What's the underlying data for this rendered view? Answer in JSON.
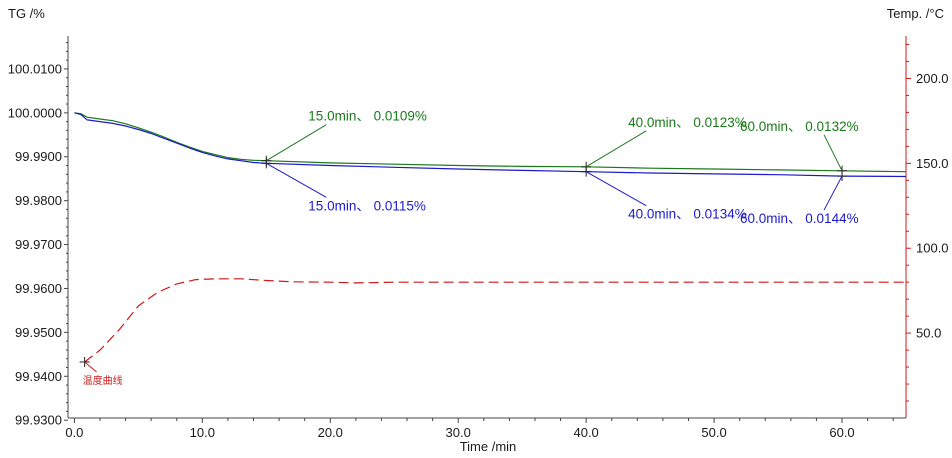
{
  "chart_data": {
    "type": "line",
    "axes": {
      "left_title": "TG /%",
      "right_title": "Temp. /°C",
      "x_title": "Time /min",
      "xlim": [
        -0.5,
        65
      ],
      "ylim_left": [
        99.9305,
        100.0175
      ],
      "ylim_right": [
        0,
        225
      ],
      "x_ticks": [
        0,
        10,
        20,
        30,
        40,
        50,
        60
      ],
      "x_tick_labels": [
        "0.0",
        "10.0",
        "20.0",
        "30.0",
        "40.0",
        "50.0",
        "60.0"
      ],
      "left_ticks": [
        99.93,
        99.94,
        99.95,
        99.96,
        99.97,
        99.98,
        99.99,
        100.0,
        100.01
      ],
      "left_tick_labels": [
        "99.9300",
        "99.9400",
        "99.9500",
        "99.9600",
        "99.9700",
        "99.9800",
        "99.9900",
        "100.0000",
        "100.0100"
      ],
      "right_ticks": [
        50,
        100,
        150,
        200
      ],
      "right_tick_labels": [
        "50.0",
        "100.0",
        "150.0",
        "200.0"
      ]
    },
    "series": [
      {
        "color": "#1a7a1a",
        "axis": "left",
        "style": "solid",
        "points": [
          [
            0,
            100.0
          ],
          [
            0.5,
            99.9998
          ],
          [
            1,
            99.999
          ],
          [
            2,
            99.9986
          ],
          [
            3,
            99.9982
          ],
          [
            4,
            99.9975
          ],
          [
            5,
            99.9966
          ],
          [
            6,
            99.9956
          ],
          [
            7,
            99.9945
          ],
          [
            8,
            99.9933
          ],
          [
            9,
            99.9922
          ],
          [
            10,
            99.9912
          ],
          [
            11,
            99.9905
          ],
          [
            12,
            99.9898
          ],
          [
            13,
            99.9894
          ],
          [
            14,
            99.9892
          ],
          [
            15,
            99.9891
          ],
          [
            20,
            99.9886
          ],
          [
            25,
            99.9883
          ],
          [
            30,
            99.988
          ],
          [
            35,
            99.9878
          ],
          [
            40,
            99.9877
          ],
          [
            45,
            99.9874
          ],
          [
            50,
            99.9872
          ],
          [
            55,
            99.987
          ],
          [
            60,
            99.9868
          ],
          [
            65,
            99.9866
          ]
        ]
      },
      {
        "color": "#1a1acc",
        "axis": "left",
        "style": "solid",
        "points": [
          [
            0,
            100.0
          ],
          [
            0.5,
            99.9996
          ],
          [
            1,
            99.9984
          ],
          [
            2,
            99.998
          ],
          [
            3,
            99.9976
          ],
          [
            4,
            99.997
          ],
          [
            5,
            99.9962
          ],
          [
            6,
            99.9953
          ],
          [
            7,
            99.9942
          ],
          [
            8,
            99.9931
          ],
          [
            9,
            99.992
          ],
          [
            10,
            99.991
          ],
          [
            11,
            99.9902
          ],
          [
            12,
            99.9895
          ],
          [
            13,
            99.9891
          ],
          [
            14,
            99.9887
          ],
          [
            15,
            99.9885
          ],
          [
            20,
            99.988
          ],
          [
            25,
            99.9876
          ],
          [
            30,
            99.9872
          ],
          [
            35,
            99.9869
          ],
          [
            40,
            99.9866
          ],
          [
            45,
            99.9863
          ],
          [
            50,
            99.9861
          ],
          [
            55,
            99.9859
          ],
          [
            60,
            99.9856
          ],
          [
            65,
            99.9855
          ]
        ]
      },
      {
        "color": "#cc1a1a",
        "axis": "right",
        "style": "dashed",
        "points": [
          [
            0.8,
            33
          ],
          [
            2,
            40
          ],
          [
            3.5,
            52
          ],
          [
            5,
            66
          ],
          [
            6.5,
            74
          ],
          [
            8,
            79
          ],
          [
            9.5,
            81.5
          ],
          [
            11,
            82
          ],
          [
            13,
            82
          ],
          [
            15,
            81
          ],
          [
            17,
            80.2
          ],
          [
            20,
            80
          ],
          [
            22,
            79.6
          ],
          [
            25,
            80
          ],
          [
            30,
            80
          ],
          [
            40,
            80
          ],
          [
            50,
            80
          ],
          [
            60,
            80
          ],
          [
            65,
            80
          ]
        ]
      }
    ],
    "annotations": [
      {
        "text": "15.0min、 0.0109%",
        "color": "#1a7a1a",
        "x": 15,
        "y": 99.9891,
        "position": "above"
      },
      {
        "text": "40.0min、 0.0123%",
        "color": "#1a7a1a",
        "x": 40,
        "y": 99.9877,
        "position": "above"
      },
      {
        "text": "60.0min、 0.0132%",
        "color": "#1a7a1a",
        "x": 60,
        "y": 99.9868,
        "position": "above"
      },
      {
        "text": "15.0min、 0.0115%",
        "color": "#1a1acc",
        "x": 15,
        "y": 99.9885,
        "position": "below"
      },
      {
        "text": "40.0min、 0.0134%",
        "color": "#1a1acc",
        "x": 40,
        "y": 99.9866,
        "position": "below"
      },
      {
        "text": "60.0min、 0.0144%",
        "color": "#1a1acc",
        "x": 60,
        "y": 99.9856,
        "position": "below"
      }
    ],
    "temperature_label": {
      "text": "温度曲线",
      "color": "#cc1a1a",
      "x": 0.8,
      "y": 33
    }
  }
}
